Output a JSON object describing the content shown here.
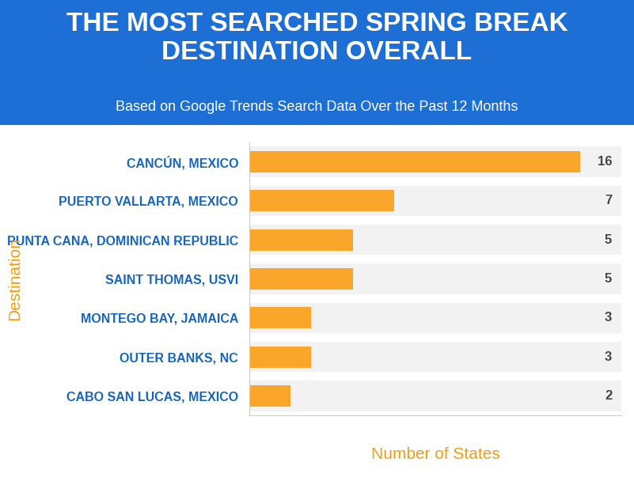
{
  "chart_data": {
    "type": "bar",
    "orientation": "horizontal",
    "title": "THE MOST SEARCHED SPRING BREAK DESTINATION OVERALL",
    "subtitle": "Based on Google Trends Search Data Over the Past 12 Months",
    "x_label": "Number of States",
    "y_label": "Destination",
    "categories": [
      "CANCÚN, MEXICO",
      "PUERTO VALLARTA, MEXICO",
      "PUNTA CANA, DOMINICAN REPUBLIC",
      "SAINT THOMAS, USVI",
      "MONTEGO BAY, JAMAICA",
      "OUTER BANKS, NC",
      "CABO SAN LUCAS, MEXICO"
    ],
    "values": [
      16,
      7,
      5,
      5,
      3,
      3,
      2
    ],
    "color": "#f9a62b",
    "xlim": [
      0,
      18
    ],
    "data_labels": true,
    "tick_labels": "y",
    "grid": false
  }
}
